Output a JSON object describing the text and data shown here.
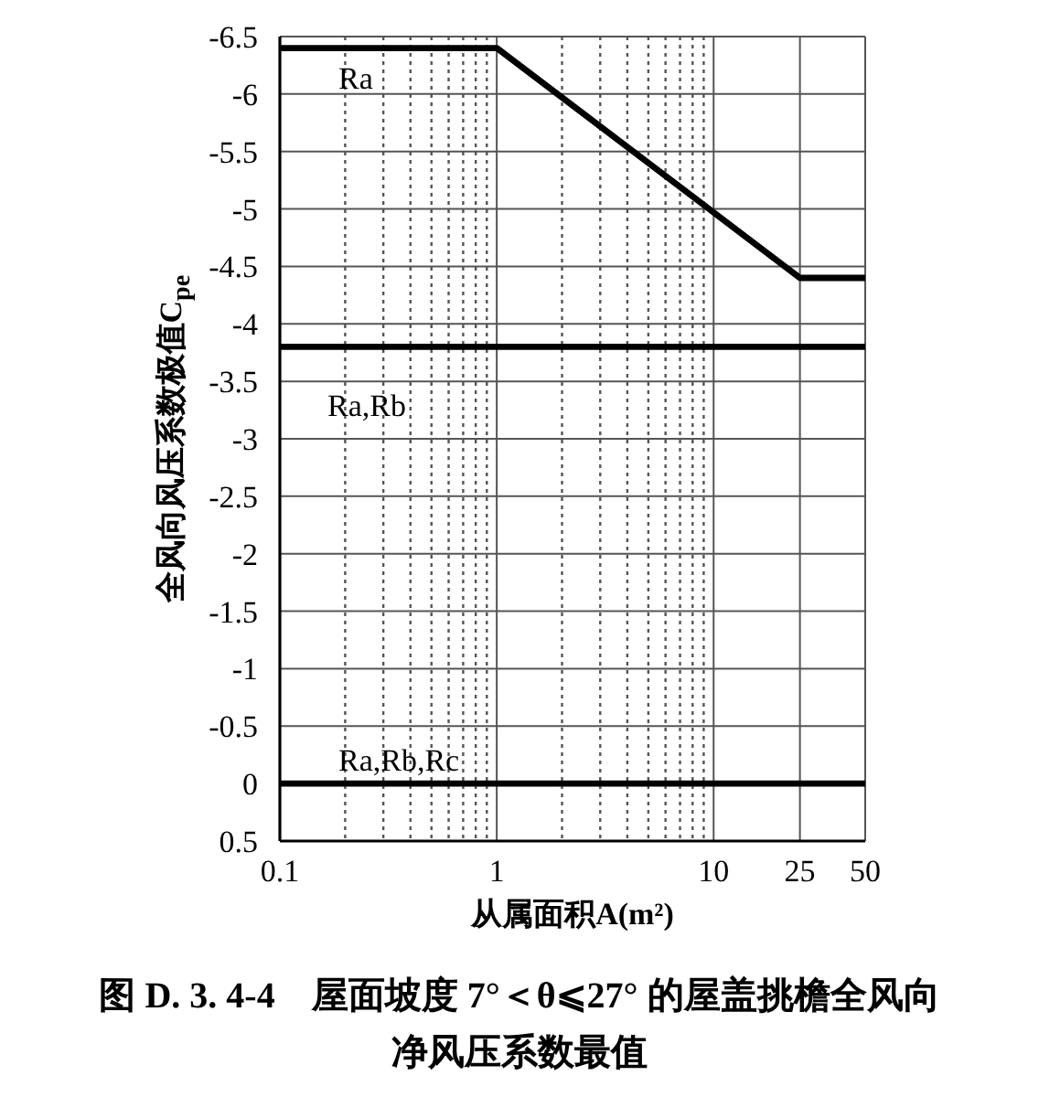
{
  "chart_data": {
    "type": "line",
    "title": "图 D. 3. 4-4　屋面坡度 7°＜θ⩽27° 的屋盖挑檐全风向净风压系数最值",
    "xlabel": "从属面积A(m²)",
    "ylabel": "全风向风压系数极值C$_{pe}$",
    "log": "x",
    "xlim": [
      0.1,
      50
    ],
    "xticks": [
      0.1,
      {
        "value": 0.2,
        "label": null
      },
      {
        "value": 0.3,
        "label": null
      },
      {
        "value": 0.4,
        "label": null
      },
      {
        "value": 0.5,
        "label": null
      },
      {
        "value": 0.6,
        "label": null
      },
      {
        "value": 0.7,
        "label": null
      },
      {
        "value": 0.8,
        "label": null
      },
      {
        "value": 0.9,
        "label": null
      },
      1,
      {
        "value": 2,
        "label": null
      },
      {
        "value": 3,
        "label": null
      },
      {
        "value": 4,
        "label": null
      },
      {
        "value": 5,
        "label": null
      },
      {
        "value": 6,
        "label": null
      },
      {
        "value": 7,
        "label": null
      },
      {
        "value": 8,
        "label": null
      },
      {
        "value": 9,
        "label": null
      },
      10,
      25,
      50
    ],
    "ylim": [
      0.5,
      -6.5
    ],
    "yticks": [
      0.5,
      0,
      -0.5,
      -1,
      -1.5,
      -2,
      -2.5,
      -3,
      -3.5,
      -4,
      -4.5,
      -5,
      -5.5,
      -6,
      -6.5
    ],
    "grid": true,
    "series": [
      {
        "name": "Ra",
        "color": "#000000",
        "x": [
          0.1,
          1,
          25,
          50
        ],
        "values": [
          -6.4,
          -6.4,
          -4.4,
          -4.4
        ]
      },
      {
        "name": "Ra,Rb",
        "color": "#000000",
        "x": [
          0.1,
          50
        ],
        "values": [
          -3.8,
          -3.8
        ]
      },
      {
        "name": "Ra,Rb,Rc",
        "color": "#000000",
        "x": [
          0.1,
          50
        ],
        "values": [
          0,
          0
        ]
      }
    ]
  }
}
